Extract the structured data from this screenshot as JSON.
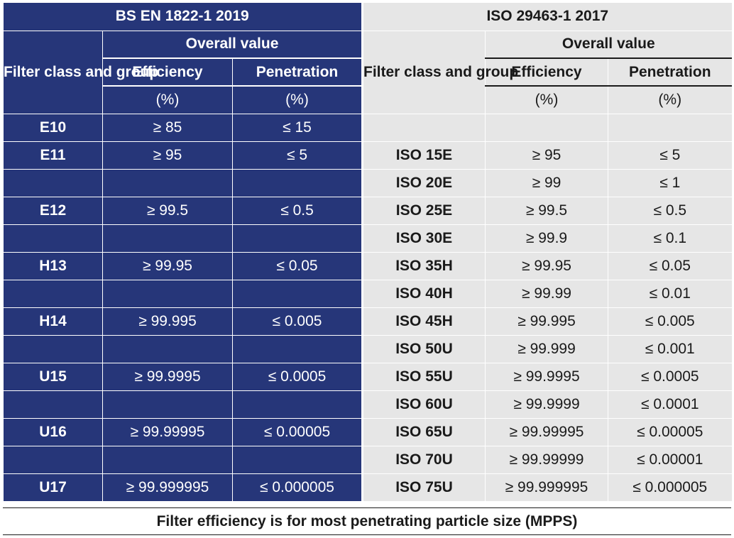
{
  "left": {
    "standard": "BS EN 1822-1 2019",
    "group_header": "Filter class and group",
    "overall_value": "Overall value",
    "efficiency_label": "Efficiency",
    "penetration_label": "Penetration",
    "unit": "(%)",
    "rows": [
      {
        "cls": "E10",
        "eff": "≥ 85",
        "pen": "≤ 15"
      },
      {
        "cls": "E11",
        "eff": "≥ 95",
        "pen": "≤ 5"
      },
      {
        "cls": "",
        "eff": "",
        "pen": ""
      },
      {
        "cls": "E12",
        "eff": "≥ 99.5",
        "pen": "≤ 0.5"
      },
      {
        "cls": "",
        "eff": "",
        "pen": ""
      },
      {
        "cls": "H13",
        "eff": "≥ 99.95",
        "pen": "≤ 0.05"
      },
      {
        "cls": "",
        "eff": "",
        "pen": ""
      },
      {
        "cls": "H14",
        "eff": "≥ 99.995",
        "pen": "≤ 0.005"
      },
      {
        "cls": "",
        "eff": "",
        "pen": ""
      },
      {
        "cls": "U15",
        "eff": "≥ 99.9995",
        "pen": "≤ 0.0005"
      },
      {
        "cls": "",
        "eff": "",
        "pen": ""
      },
      {
        "cls": "U16",
        "eff": "≥ 99.99995",
        "pen": "≤ 0.00005"
      },
      {
        "cls": "",
        "eff": "",
        "pen": ""
      },
      {
        "cls": "U17",
        "eff": "≥ 99.999995",
        "pen": "≤ 0.000005"
      }
    ]
  },
  "right": {
    "standard": "ISO 29463-1 2017",
    "group_header": "Filter class and group",
    "overall_value": "Overall value",
    "efficiency_label": "Efficiency",
    "penetration_label": "Penetration",
    "unit": "(%)",
    "rows": [
      {
        "cls": "",
        "eff": "",
        "pen": ""
      },
      {
        "cls": "ISO 15E",
        "eff": "≥ 95",
        "pen": "≤ 5"
      },
      {
        "cls": "ISO 20E",
        "eff": "≥ 99",
        "pen": "≤ 1"
      },
      {
        "cls": "ISO 25E",
        "eff": "≥ 99.5",
        "pen": "≤ 0.5"
      },
      {
        "cls": "ISO 30E",
        "eff": "≥ 99.9",
        "pen": "≤ 0.1"
      },
      {
        "cls": "ISO 35H",
        "eff": "≥ 99.95",
        "pen": "≤ 0.05"
      },
      {
        "cls": "ISO 40H",
        "eff": "≥ 99.99",
        "pen": "≤ 0.01"
      },
      {
        "cls": "ISO 45H",
        "eff": "≥ 99.995",
        "pen": "≤ 0.005"
      },
      {
        "cls": "ISO 50U",
        "eff": "≥ 99.999",
        "pen": "≤ 0.001"
      },
      {
        "cls": "ISO 55U",
        "eff": "≥ 99.9995",
        "pen": "≤ 0.0005"
      },
      {
        "cls": "ISO 60U",
        "eff": "≥ 99.9999",
        "pen": "≤ 0.0001"
      },
      {
        "cls": "ISO 65U",
        "eff": "≥ 99.99995",
        "pen": "≤ 0.00005"
      },
      {
        "cls": "ISO 70U",
        "eff": "≥ 99.99999",
        "pen": "≤ 0.00001"
      },
      {
        "cls": "ISO 75U",
        "eff": "≥ 99.999995",
        "pen": "≤ 0.000005"
      }
    ]
  },
  "footer": "Filter efficiency is for most penetrating particle size (MPPS)",
  "colors": {
    "left_bg": "#263679",
    "right_bg": "#e6e6e6"
  }
}
